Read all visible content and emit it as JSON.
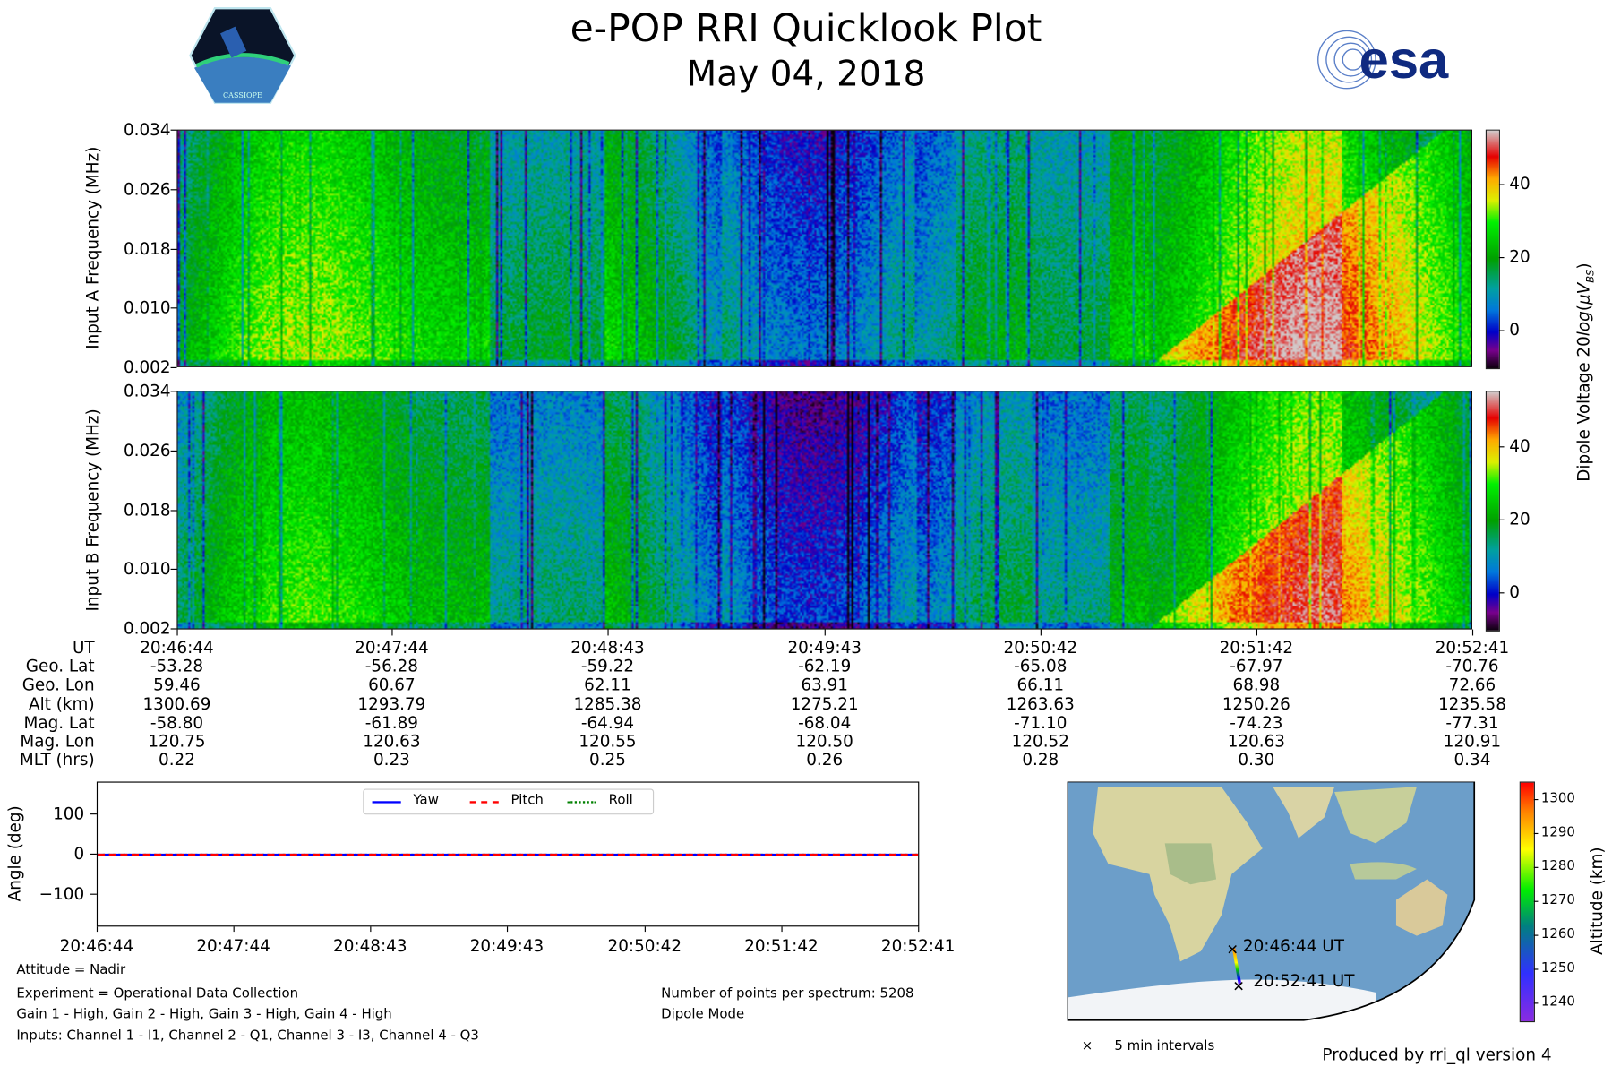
{
  "header": {
    "title": "e-POP RRI Quicklook Plot",
    "date": "May 04, 2018",
    "left_logo": "CASSIOPE",
    "right_logo": "esa"
  },
  "chart_data": [
    {
      "type": "heatmap",
      "name": "Input A spectrogram",
      "ylabel": "Input A Frequency (MHz)",
      "yticks": [
        "0.034",
        "0.026",
        "0.018",
        "0.010",
        "0.002"
      ],
      "ylim": [
        0.002,
        0.034
      ],
      "xticks": [
        "20:46:44",
        "20:47:44",
        "20:48:43",
        "20:49:43",
        "20:50:42",
        "20:51:42",
        "20:52:41"
      ]
    },
    {
      "type": "heatmap",
      "name": "Input B spectrogram",
      "ylabel": "Input B Frequency (MHz)",
      "yticks": [
        "0.034",
        "0.026",
        "0.018",
        "0.010",
        "0.002"
      ],
      "ylim": [
        0.002,
        0.034
      ]
    },
    {
      "type": "colorbar",
      "label": "Dipole Voltage 20log(μV_BS)",
      "ticks": [
        "40",
        "20",
        "0"
      ],
      "range": [
        -10,
        55
      ]
    },
    {
      "type": "line",
      "name": "Attitude",
      "ylabel": "Angle (deg)",
      "yticks": [
        "100",
        "0",
        "−100"
      ],
      "ylim": [
        -180,
        180
      ],
      "xticks": [
        "20:46:44",
        "20:47:44",
        "20:48:43",
        "20:49:43",
        "20:50:42",
        "20:51:42",
        "20:52:41"
      ],
      "series": [
        {
          "name": "Yaw",
          "values": [
            0,
            0,
            0,
            0,
            0,
            0,
            0
          ],
          "color": "#0000ff"
        },
        {
          "name": "Pitch",
          "values": [
            0,
            0,
            0,
            0,
            0,
            0,
            0
          ],
          "color": "#ff0000"
        },
        {
          "name": "Roll",
          "values": [
            0,
            0,
            0,
            0,
            0,
            0,
            0
          ],
          "color": "#008000"
        }
      ]
    },
    {
      "type": "scatter",
      "name": "Ground track map",
      "start_label": "20:46:44 UT",
      "end_label": "20:52:41 UT",
      "legend": "5 min intervals",
      "colorbar": {
        "label": "Altitude (km)",
        "ticks": [
          "1300",
          "1290",
          "1280",
          "1270",
          "1260",
          "1250",
          "1240"
        ],
        "range": [
          1235,
          1305
        ]
      }
    }
  ],
  "ephemeris": {
    "labels": [
      "UT",
      "Geo. Lat",
      "Geo. Lon",
      "Alt (km)",
      "Mag. Lat",
      "Mag. Lon",
      "MLT (hrs)"
    ],
    "columns": [
      [
        "20:46:44",
        "-53.28",
        "59.46",
        "1300.69",
        "-58.80",
        "120.75",
        "0.22"
      ],
      [
        "20:47:44",
        "-56.28",
        "60.67",
        "1293.79",
        "-61.89",
        "120.63",
        "0.23"
      ],
      [
        "20:48:43",
        "-59.22",
        "62.11",
        "1285.38",
        "-64.94",
        "120.55",
        "0.25"
      ],
      [
        "20:49:43",
        "-62.19",
        "63.91",
        "1275.21",
        "-68.04",
        "120.50",
        "0.26"
      ],
      [
        "20:50:42",
        "-65.08",
        "66.11",
        "1263.63",
        "-71.10",
        "120.52",
        "0.28"
      ],
      [
        "20:51:42",
        "-67.97",
        "68.98",
        "1250.26",
        "-74.23",
        "120.63",
        "0.30"
      ],
      [
        "20:52:41",
        "-70.76",
        "72.66",
        "1235.58",
        "-77.31",
        "120.91",
        "0.34"
      ]
    ]
  },
  "notes": {
    "left": [
      "Attitude = Nadir",
      "Experiment = Operational Data Collection",
      "Gain 1 - High, Gain 2 - High, Gain 3 - High, Gain 4 - High",
      "Inputs: Channel 1 - I1, Channel 2 - Q1, Channel 3 - I3, Channel 4 - Q3"
    ],
    "right": [
      "Number of points per spectrum: 5208",
      "Dipole Mode"
    ],
    "footer": "Produced by rri_ql version 4"
  }
}
